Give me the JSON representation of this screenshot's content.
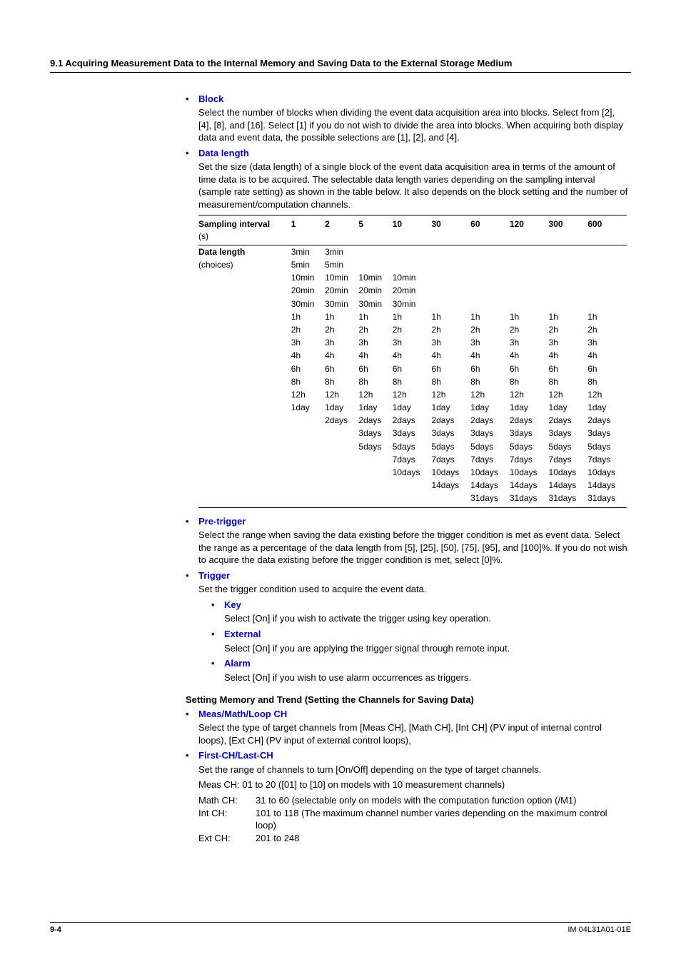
{
  "header": "9.1  Acquiring Measurement Data to the Internal Memory and Saving Data to the External Storage Medium",
  "items": {
    "block": {
      "label": "Block",
      "text": "Select the number of blocks when dividing the event data acquisition area into blocks.  Select from [2], [4], [8], and [16].  Select [1] if you do not wish to divide the area into blocks.  When acquiring both display data and event data, the possible selections are [1], [2], and [4]."
    },
    "datalength": {
      "label": "Data length",
      "text": "Set the size (data length) of a single block of the event data acquisition area in terms of the amount of time data is to be acquired.  The selectable data length varies depending on the sampling interval (sample rate setting) as shown in the table below.  It also depends on the block setting and the number of measurement/computation channels."
    },
    "pretrigger": {
      "label": "Pre-trigger",
      "text": "Select the range when saving the data existing before the trigger condition is met as event data.  Select the range as a percentage of the data length from [5], [25], [50], [75], [95], and [100]%.  If you do not wish to acquire the data existing before the trigger condition is met, select [0]%."
    },
    "trigger": {
      "label": "Trigger",
      "text": "Set the trigger condition used to acquire the event data.",
      "sub": {
        "key": {
          "label": "Key",
          "text": "Select [On] if you wish to activate the trigger using key operation."
        },
        "external": {
          "label": "External",
          "text": "Select [On] if you are applying the trigger signal through remote input."
        },
        "alarm": {
          "label": "Alarm",
          "text": "Select [On] if you wish to use alarm occurrences as triggers."
        }
      }
    }
  },
  "table": {
    "rowhead_label": "Sampling interval",
    "rowhead_unit": "(s)",
    "col_labels": [
      "1",
      "2",
      "5",
      "10",
      "30",
      "60",
      "120",
      "300",
      "600"
    ],
    "rowlabel1": "Data length",
    "rowlabel2": "(choices)",
    "rows": [
      [
        "3min",
        "3min",
        "",
        "",
        "",
        "",
        "",
        "",
        ""
      ],
      [
        "5min",
        "5min",
        "",
        "",
        "",
        "",
        "",
        "",
        ""
      ],
      [
        "10min",
        "10min",
        "10min",
        "10min",
        "",
        "",
        "",
        "",
        ""
      ],
      [
        "20min",
        "20min",
        "20min",
        "20min",
        "",
        "",
        "",
        "",
        ""
      ],
      [
        "30min",
        "30min",
        "30min",
        "30min",
        "",
        "",
        "",
        "",
        ""
      ],
      [
        "1h",
        "1h",
        "1h",
        "1h",
        "1h",
        "1h",
        "1h",
        "1h",
        "1h"
      ],
      [
        "2h",
        "2h",
        "2h",
        "2h",
        "2h",
        "2h",
        "2h",
        "2h",
        "2h"
      ],
      [
        "3h",
        "3h",
        "3h",
        "3h",
        "3h",
        "3h",
        "3h",
        "3h",
        "3h"
      ],
      [
        "4h",
        "4h",
        "4h",
        "4h",
        "4h",
        "4h",
        "4h",
        "4h",
        "4h"
      ],
      [
        "6h",
        "6h",
        "6h",
        "6h",
        "6h",
        "6h",
        "6h",
        "6h",
        "6h"
      ],
      [
        "8h",
        "8h",
        "8h",
        "8h",
        "8h",
        "8h",
        "8h",
        "8h",
        "8h"
      ],
      [
        "12h",
        "12h",
        "12h",
        "12h",
        "12h",
        "12h",
        "12h",
        "12h",
        "12h"
      ],
      [
        "1day",
        "1day",
        "1day",
        "1day",
        "1day",
        "1day",
        "1day",
        "1day",
        "1day"
      ],
      [
        "",
        "2days",
        "2days",
        "2days",
        "2days",
        "2days",
        "2days",
        "2days",
        "2days"
      ],
      [
        "",
        "",
        "3days",
        "3days",
        "3days",
        "3days",
        "3days",
        "3days",
        "3days"
      ],
      [
        "",
        "",
        "5days",
        "5days",
        "5days",
        "5days",
        "5days",
        "5days",
        "5days"
      ],
      [
        "",
        "",
        "",
        "7days",
        "7days",
        "7days",
        "7days",
        "7days",
        "7days"
      ],
      [
        "",
        "",
        "",
        "10days",
        "10days",
        "10days",
        "10days",
        "10days",
        "10days"
      ],
      [
        "",
        "",
        "",
        "",
        "14days",
        "14days",
        "14days",
        "14days",
        "14days"
      ],
      [
        "",
        "",
        "",
        "",
        "",
        "31days",
        "31days",
        "31days",
        "31days"
      ]
    ]
  },
  "section2": {
    "title": "Setting Memory and Trend (Setting the Channels for Saving Data)",
    "measmath": {
      "label": "Meas/Math/Loop CH",
      "text": "Select the type of target channels from [Meas CH], [Math CH], [Int CH] (PV input of internal control loops), [Ext CH] (PV input of external control loops),"
    },
    "firstlast": {
      "label": "First-CH/Last-CH",
      "text1": "Set the range of channels to turn [On/Off] depending on the type of target channels.",
      "text2": "Meas CH: 01 to 20 ([01] to [10] on models with 10 measurement channels)",
      "rows": {
        "math": {
          "k": "Math CH:",
          "v": "31 to 60 (selectable only on models with the computation function option (/M1)"
        },
        "int": {
          "k": "Int CH:",
          "v": "101 to 118 (The maximum channel number varies depending on the maximum control loop)"
        },
        "ext": {
          "k": "Ext CH:",
          "v": "201 to 248"
        }
      }
    }
  },
  "footer": {
    "page": "9-4",
    "doc": "IM 04L31A01-01E"
  }
}
